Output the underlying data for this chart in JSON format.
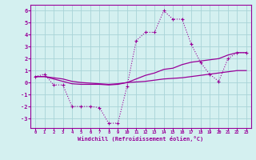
{
  "x_ticks": [
    0,
    1,
    2,
    3,
    4,
    5,
    6,
    7,
    8,
    9,
    10,
    11,
    12,
    13,
    14,
    15,
    16,
    17,
    18,
    19,
    20,
    21,
    22,
    23
  ],
  "line1_x": [
    0,
    1,
    2,
    3,
    4,
    5,
    6,
    7,
    8,
    9,
    10,
    11,
    12,
    13,
    14,
    15,
    16,
    17,
    18,
    19,
    20,
    21,
    22,
    23
  ],
  "line1_y": [
    0.5,
    0.7,
    -0.2,
    -0.2,
    -2.0,
    -2.0,
    -2.0,
    -2.1,
    -3.4,
    -3.4,
    -0.3,
    3.5,
    4.2,
    4.2,
    6.0,
    5.3,
    5.3,
    3.2,
    1.7,
    0.7,
    0.1,
    2.0,
    2.5,
    2.5
  ],
  "line2_x": [
    0,
    1,
    2,
    3,
    4,
    5,
    6,
    7,
    8,
    9,
    10,
    11,
    12,
    13,
    14,
    15,
    16,
    17,
    18,
    19,
    20,
    21,
    22,
    23
  ],
  "line2_y": [
    0.5,
    0.5,
    0.3,
    0.1,
    -0.1,
    -0.15,
    -0.15,
    -0.15,
    -0.2,
    -0.15,
    0.0,
    0.3,
    0.6,
    0.8,
    1.1,
    1.2,
    1.5,
    1.7,
    1.8,
    1.9,
    2.0,
    2.3,
    2.5,
    2.5
  ],
  "line3_x": [
    0,
    1,
    2,
    3,
    4,
    5,
    6,
    7,
    8,
    9,
    10,
    11,
    12,
    13,
    14,
    15,
    16,
    17,
    18,
    19,
    20,
    21,
    22,
    23
  ],
  "line3_y": [
    0.5,
    0.5,
    0.4,
    0.3,
    0.1,
    0.0,
    -0.05,
    -0.1,
    -0.15,
    -0.1,
    0.0,
    0.05,
    0.1,
    0.2,
    0.3,
    0.35,
    0.4,
    0.5,
    0.6,
    0.7,
    0.8,
    0.9,
    1.0,
    1.0
  ],
  "line_color": "#990099",
  "bg_color": "#d4f0f0",
  "grid_color": "#a8d4d8",
  "xlabel": "Windchill (Refroidissement éolien,°C)",
  "ylim": [
    -3.8,
    6.5
  ],
  "xlim": [
    -0.5,
    23.5
  ],
  "yticks": [
    -3,
    -2,
    -1,
    0,
    1,
    2,
    3,
    4,
    5,
    6
  ]
}
